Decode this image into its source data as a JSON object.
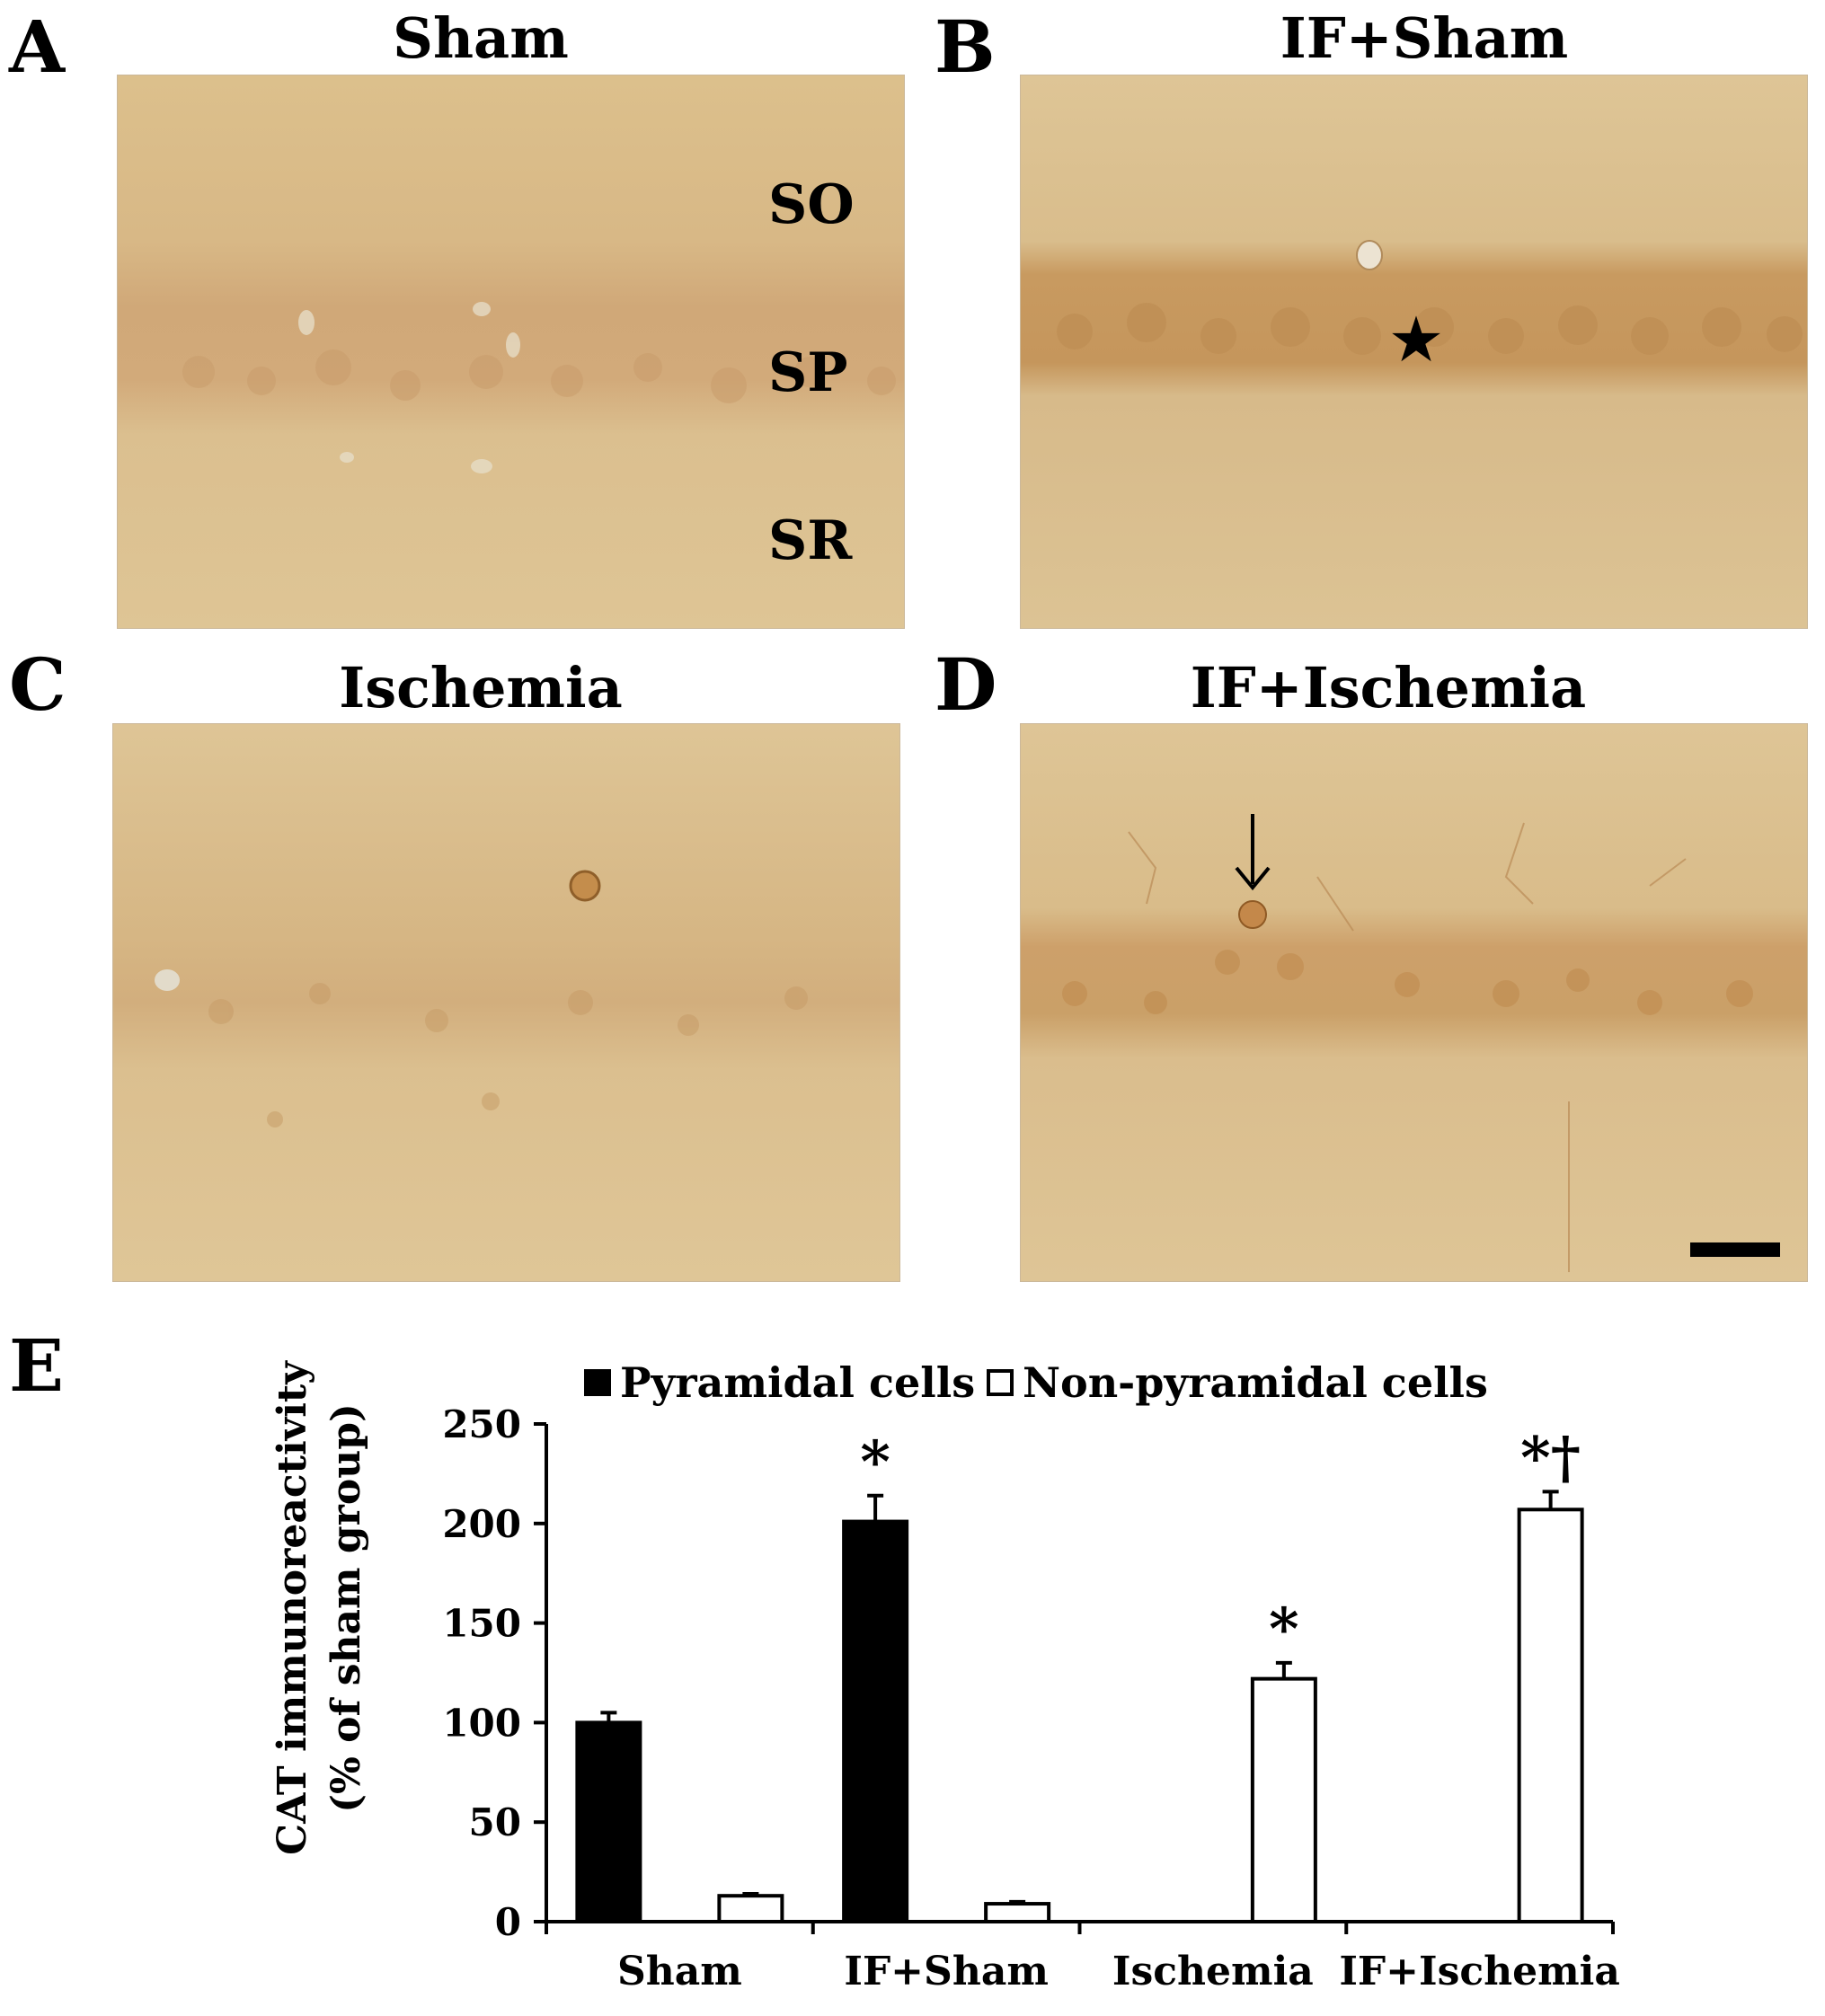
{
  "panels": [
    {
      "letter": "A",
      "title": "Sham",
      "layers": [
        "SO",
        "SP",
        "SR"
      ]
    },
    {
      "letter": "B",
      "title": "IF+Sham"
    },
    {
      "letter": "C",
      "title": "Ischemia"
    },
    {
      "letter": "D",
      "title": "IF+Ischemia"
    }
  ],
  "panel_e_letter": "E",
  "colors": {
    "tissue": "#dcc089",
    "stain": "#b9894a",
    "bar_pyramidal": "#000000",
    "bar_nonpyramidal": "#ffffff"
  },
  "icons": {
    "star": "star-icon",
    "arrow": "arrow-down-icon",
    "scale_bar": "scale-bar"
  },
  "chart_data": {
    "type": "bar",
    "categories": [
      "Sham",
      "IF+Sham",
      "Ischemia",
      "IF+Ischemia"
    ],
    "series": [
      {
        "name": "Pyramidal cells",
        "values": [
          100,
          201,
          0,
          0
        ],
        "errors": [
          5,
          13,
          0,
          0
        ],
        "color": "#000000"
      },
      {
        "name": "Non-pyramidal cells",
        "values": [
          13,
          9,
          122,
          207
        ],
        "errors": [
          1,
          1,
          8,
          9
        ],
        "color": "#ffffff"
      }
    ],
    "annotations": [
      {
        "category": "IF+Sham",
        "series": "Pyramidal cells",
        "text": "*"
      },
      {
        "category": "Ischemia",
        "series": "Non-pyramidal cells",
        "text": "*"
      },
      {
        "category": "IF+Ischemia",
        "series": "Non-pyramidal cells",
        "text": "*†"
      }
    ],
    "ylabel_line1": "CAT immunoreactivity",
    "ylabel_line2": "(% of sham group)",
    "ylim": [
      0,
      250
    ],
    "yticks": [
      0,
      50,
      100,
      150,
      200,
      250
    ],
    "legend_position": "top",
    "grid": false
  }
}
